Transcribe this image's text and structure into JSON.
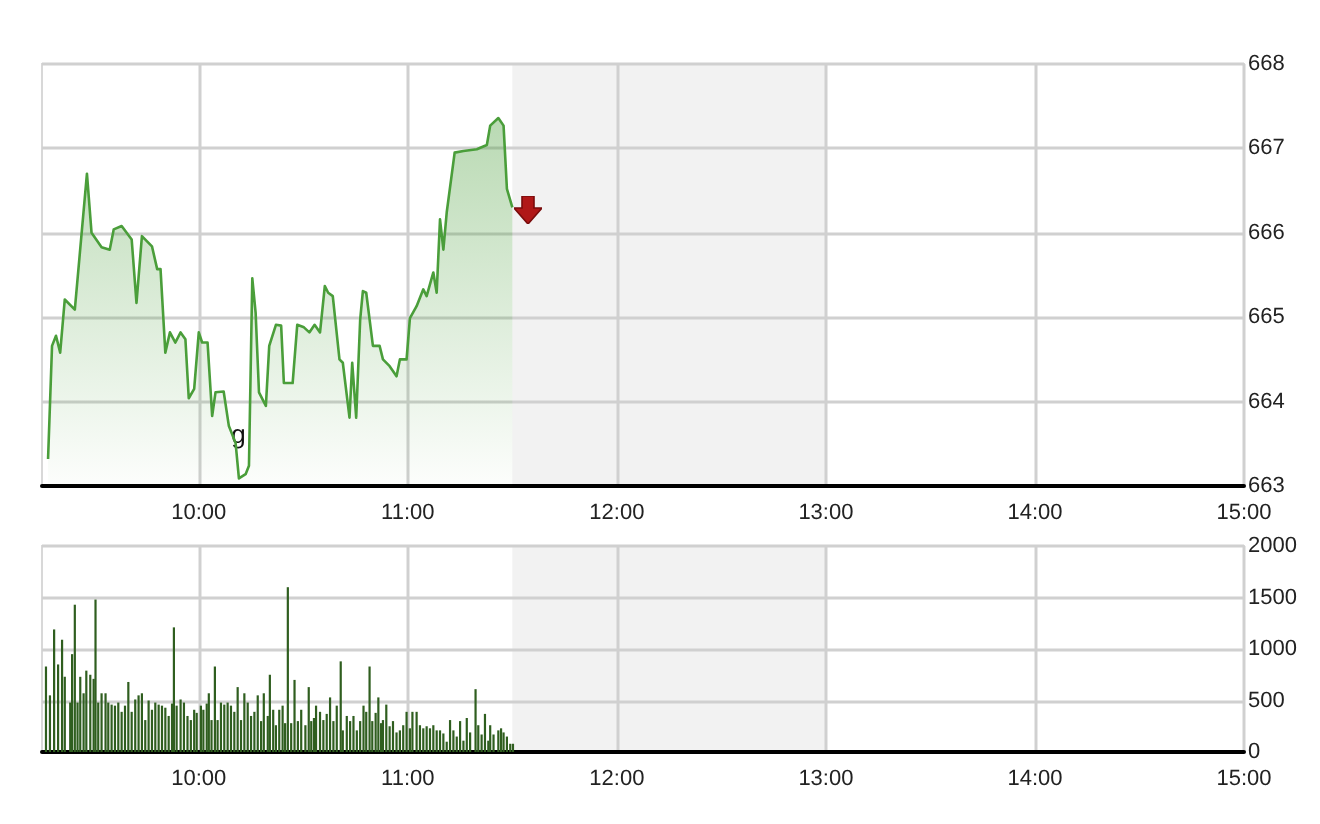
{
  "chart_data": [
    {
      "type": "area",
      "color": "#4a9e3a",
      "x": [
        9.279,
        9.298,
        9.317,
        9.337,
        9.359,
        9.407,
        9.465,
        9.487,
        9.535,
        9.574,
        9.593,
        9.631,
        9.679,
        9.702,
        9.728,
        9.776,
        9.801,
        9.817,
        9.84,
        9.862,
        9.888,
        9.913,
        9.936,
        9.952,
        9.978,
        10.0,
        10.016,
        10.042,
        10.064,
        10.08,
        10.119,
        10.144,
        10.176,
        10.192,
        10.224,
        10.24,
        10.256,
        10.272,
        10.288,
        10.321,
        10.337,
        10.369,
        10.394,
        10.407,
        10.449,
        10.471,
        10.503,
        10.529,
        10.554,
        10.58,
        10.603,
        10.619,
        10.641,
        10.673,
        10.689,
        10.721,
        10.734,
        10.753,
        10.772,
        10.785,
        10.801,
        10.833,
        10.865,
        10.881,
        10.913,
        10.946,
        10.962,
        10.994,
        11.01,
        11.042,
        11.074,
        11.09,
        11.122,
        11.138,
        11.154,
        11.17,
        11.186,
        11.224,
        11.266,
        11.33,
        11.378,
        11.394,
        11.433,
        11.458,
        11.474,
        11.5
      ],
      "values": [
        663.32,
        664.66,
        664.78,
        664.58,
        665.21,
        665.09,
        666.7,
        666.0,
        665.83,
        665.8,
        666.04,
        666.08,
        665.92,
        665.17,
        665.96,
        665.84,
        665.57,
        665.57,
        664.58,
        664.82,
        664.7,
        664.82,
        664.74,
        664.04,
        664.15,
        664.82,
        664.7,
        664.7,
        663.83,
        664.11,
        664.12,
        663.71,
        663.51,
        663.09,
        663.14,
        663.24,
        665.46,
        665.05,
        664.11,
        663.95,
        664.66,
        664.91,
        664.9,
        664.22,
        664.22,
        664.91,
        664.88,
        664.82,
        664.91,
        664.82,
        665.37,
        665.29,
        665.25,
        664.5,
        664.46,
        663.81,
        664.46,
        663.81,
        664.97,
        665.31,
        665.29,
        664.66,
        664.66,
        664.5,
        664.42,
        664.3,
        664.5,
        664.5,
        664.99,
        665.13,
        665.33,
        665.25,
        665.53,
        665.29,
        666.16,
        665.8,
        666.24,
        666.95,
        666.97,
        666.99,
        667.04,
        667.27,
        667.36,
        667.27,
        666.52,
        666.3
      ],
      "xlim": [
        9.25,
        15
      ],
      "xticks": [
        {
          "value": 10,
          "label": "10:00"
        },
        {
          "value": 11,
          "label": "11:00"
        },
        {
          "value": 12,
          "label": "12:00"
        },
        {
          "value": 13,
          "label": "13:00"
        },
        {
          "value": 14,
          "label": "14:00"
        },
        {
          "value": 15,
          "label": "15:00"
        }
      ],
      "ylim": [
        663,
        668
      ],
      "yticks": [
        663,
        664,
        665,
        666,
        667,
        668
      ],
      "grid": true,
      "bands": [
        {
          "axis": "x",
          "from": 11.5,
          "to": 13,
          "color": "#f2f2f2"
        }
      ],
      "annotations": [
        {
          "text": "g",
          "x": 10.19,
          "y": 663.62
        }
      ]
    },
    {
      "type": "bar",
      "color": "#2f5e1f",
      "x": [
        9.269,
        9.288,
        9.308,
        9.327,
        9.346,
        9.359,
        9.385,
        9.394,
        9.407,
        9.42,
        9.433,
        9.449,
        9.462,
        9.481,
        9.497,
        9.506,
        9.519,
        9.535,
        9.554,
        9.567,
        9.583,
        9.599,
        9.615,
        9.631,
        9.647,
        9.663,
        9.679,
        9.696,
        9.712,
        9.728,
        9.744,
        9.76,
        9.776,
        9.792,
        9.808,
        9.824,
        9.84,
        9.856,
        9.872,
        9.881,
        9.894,
        9.913,
        9.929,
        9.946,
        9.962,
        9.978,
        9.99,
        10.01,
        10.022,
        10.038,
        10.048,
        10.061,
        10.077,
        10.09,
        10.106,
        10.122,
        10.138,
        10.154,
        10.17,
        10.186,
        10.202,
        10.218,
        10.234,
        10.25,
        10.266,
        10.282,
        10.298,
        10.311,
        10.33,
        10.34,
        10.356,
        10.369,
        10.385,
        10.401,
        10.413,
        10.426,
        10.442,
        10.458,
        10.474,
        10.49,
        10.51,
        10.526,
        10.538,
        10.551,
        10.561,
        10.58,
        10.596,
        10.612,
        10.628,
        10.644,
        10.66,
        10.679,
        10.689,
        10.708,
        10.724,
        10.74,
        10.756,
        10.772,
        10.788,
        10.801,
        10.817,
        10.83,
        10.846,
        10.859,
        10.872,
        10.881,
        10.897,
        10.913,
        10.929,
        10.946,
        10.962,
        10.978,
        10.994,
        11.01,
        11.022,
        11.042,
        11.058,
        11.074,
        11.09,
        11.106,
        11.122,
        11.138,
        11.154,
        11.17,
        11.186,
        11.202,
        11.218,
        11.234,
        11.25,
        11.266,
        11.282,
        11.298,
        11.324,
        11.337,
        11.353,
        11.369,
        11.385,
        11.394,
        11.41,
        11.433,
        11.446,
        11.458,
        11.474,
        11.49,
        11.503
      ],
      "values": [
        830,
        550,
        1190,
        850,
        1090,
        730,
        480,
        950,
        1430,
        480,
        730,
        570,
        790,
        750,
        710,
        1480,
        480,
        570,
        570,
        480,
        460,
        450,
        480,
        390,
        450,
        680,
        390,
        510,
        550,
        570,
        310,
        500,
        410,
        480,
        460,
        450,
        430,
        350,
        470,
        1210,
        450,
        510,
        480,
        350,
        310,
        410,
        380,
        450,
        410,
        470,
        570,
        310,
        830,
        310,
        480,
        460,
        480,
        450,
        390,
        630,
        310,
        570,
        480,
        350,
        390,
        550,
        300,
        570,
        350,
        750,
        410,
        260,
        410,
        450,
        280,
        1600,
        280,
        700,
        300,
        410,
        260,
        630,
        300,
        330,
        450,
        390,
        310,
        370,
        530,
        300,
        450,
        880,
        210,
        350,
        300,
        350,
        210,
        300,
        450,
        390,
        830,
        300,
        380,
        530,
        280,
        310,
        460,
        250,
        300,
        190,
        210,
        260,
        390,
        230,
        390,
        390,
        260,
        230,
        250,
        230,
        260,
        210,
        210,
        180,
        100,
        310,
        210,
        150,
        300,
        110,
        330,
        190,
        610,
        260,
        170,
        370,
        110,
        260,
        170,
        210,
        230,
        190,
        150,
        80,
        80
      ],
      "xlim": [
        9.25,
        15
      ],
      "xticks": [
        {
          "value": 10,
          "label": "10:00"
        },
        {
          "value": 11,
          "label": "11:00"
        },
        {
          "value": 12,
          "label": "12:00"
        },
        {
          "value": 13,
          "label": "13:00"
        },
        {
          "value": 14,
          "label": "14:00"
        },
        {
          "value": 15,
          "label": "15:00"
        }
      ],
      "ylim": [
        0,
        2000
      ],
      "yticks": [
        0,
        500,
        1000,
        1500,
        2000
      ],
      "grid": true,
      "bands": [
        {
          "axis": "x",
          "from": 11.5,
          "to": 13,
          "color": "#f2f2f2"
        }
      ]
    }
  ]
}
